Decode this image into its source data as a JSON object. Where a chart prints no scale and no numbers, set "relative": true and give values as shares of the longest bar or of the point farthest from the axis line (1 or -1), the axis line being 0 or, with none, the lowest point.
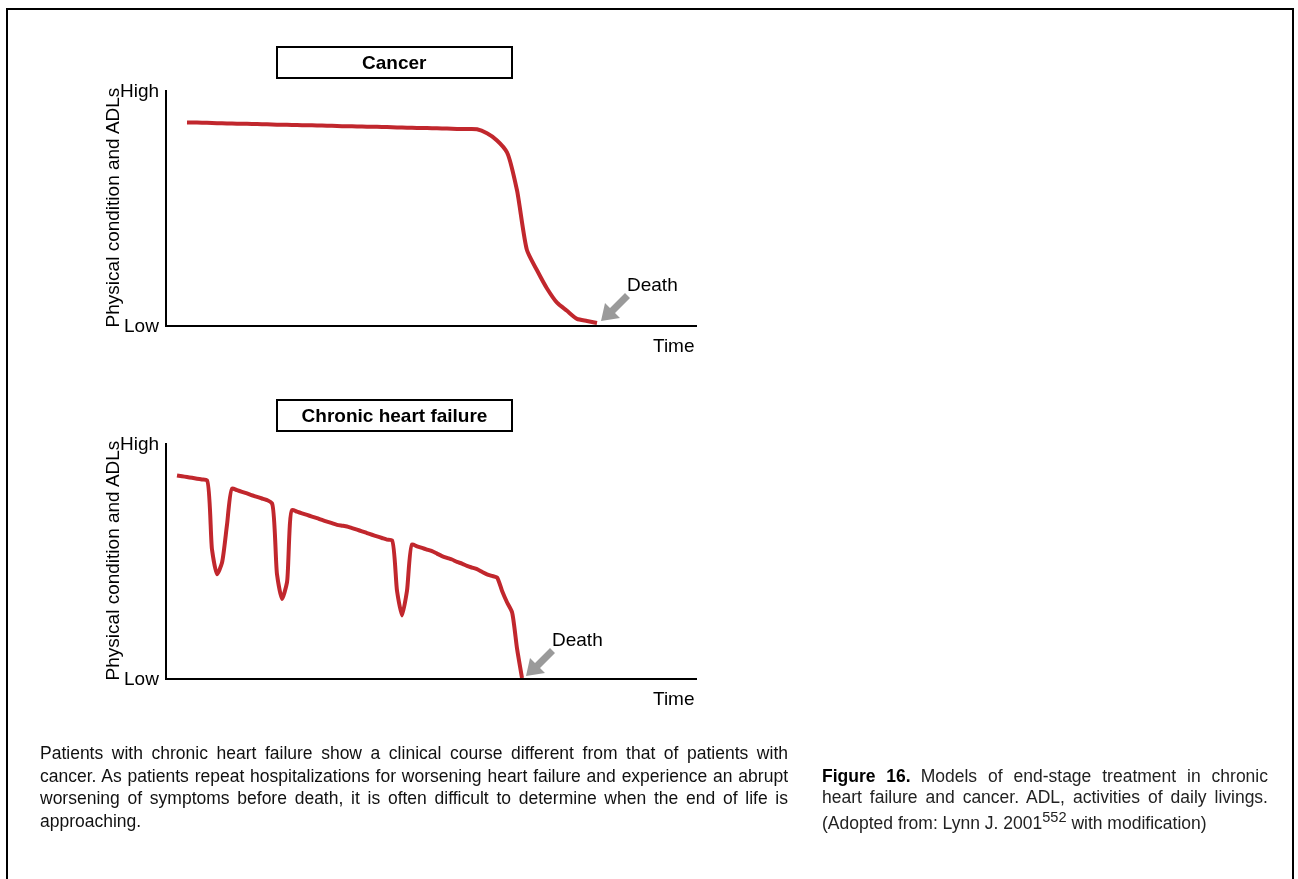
{
  "chart_data": [
    {
      "type": "line",
      "title": "Cancer",
      "ylabel": "Physical condition and ADLs",
      "xlabel": "Time",
      "relative": true,
      "legend": false,
      "marker": "none",
      "grid": false,
      "annotations": [
        "High",
        "Low",
        "Death"
      ],
      "categories": [
        null,
        null,
        null,
        null,
        null,
        null,
        null,
        null,
        null,
        null,
        null,
        null,
        null,
        null,
        null,
        null,
        null,
        null,
        null,
        null,
        null,
        null,
        null,
        null,
        null,
        null,
        null,
        null,
        null,
        null,
        null,
        null,
        null,
        null,
        null,
        null,
        null,
        null,
        null,
        null,
        null,
        null,
        null,
        null,
        null,
        null,
        null,
        null,
        null,
        null,
        null,
        null,
        null,
        null
      ],
      "series": [
        {
          "color": "#c1272d",
          "values": [
            null,
            null,
            1.0,
            0.999,
            0.998,
            0.996,
            0.995,
            0.994,
            0.993,
            0.992,
            0.991,
            0.989,
            0.988,
            0.987,
            0.986,
            0.985,
            0.984,
            0.982,
            0.981,
            0.98,
            0.979,
            0.978,
            0.977,
            0.975,
            0.974,
            0.973,
            0.972,
            0.971,
            0.97,
            0.968,
            0.967,
            0.966,
            0.946,
            0.911,
            0.852,
            0.665,
            0.369,
            0.27,
            0.18,
            0.11,
            0.07,
            0.03,
            0.02,
            0.01,
            null,
            null,
            null,
            null,
            null,
            null,
            null,
            null,
            null,
            null
          ]
        }
      ]
    },
    {
      "type": "line",
      "title": "Chronic heart failure",
      "ylabel": "Physical condition and ADLs",
      "xlabel": "Time",
      "relative": true,
      "legend": false,
      "marker": "none",
      "grid": false,
      "annotations": [
        "High",
        "Low",
        "Death"
      ],
      "categories": [
        null,
        null,
        null,
        null,
        null,
        null,
        null,
        null,
        null,
        null,
        null,
        null,
        null,
        null,
        null,
        null,
        null,
        null,
        null,
        null,
        null,
        null,
        null,
        null,
        null,
        null,
        null,
        null,
        null,
        null,
        null,
        null,
        null,
        null,
        null,
        null,
        null,
        null,
        null,
        null,
        null,
        null,
        null,
        null,
        null,
        null,
        null,
        null,
        null,
        null,
        null,
        null,
        null,
        null,
        null,
        null,
        null,
        null,
        null,
        null,
        null,
        null,
        null,
        null,
        null,
        null,
        null,
        null,
        null,
        null,
        null,
        null,
        null,
        null,
        null,
        null,
        null,
        null,
        null,
        null,
        null,
        null,
        null,
        null,
        null,
        null,
        null,
        null,
        null,
        null,
        null,
        null,
        null,
        null,
        null,
        null,
        null,
        null,
        null,
        null,
        null,
        null,
        null,
        null,
        null,
        null,
        null
      ],
      "series": [
        {
          "color": "#c1272d",
          "values": [
            null,
            null,
            1.0,
            0.996,
            0.992,
            0.988,
            0.984,
            0.98,
            0.976,
            0.634,
            0.512,
            0.569,
            0.756,
            0.935,
            0.927,
            0.919,
            0.911,
            0.902,
            0.894,
            0.886,
            0.878,
            0.862,
            0.512,
            0.39,
            0.472,
            0.829,
            0.821,
            0.813,
            0.805,
            0.797,
            0.789,
            0.78,
            0.772,
            0.764,
            0.756,
            0.752,
            0.748,
            0.74,
            0.732,
            0.724,
            0.715,
            0.707,
            0.699,
            0.691,
            0.683,
            0.679,
            0.431,
            0.309,
            0.431,
            0.659,
            0.65,
            0.642,
            0.634,
            0.626,
            0.614,
            0.602,
            0.593,
            0.585,
            0.573,
            0.565,
            0.553,
            0.545,
            0.537,
            0.524,
            0.512,
            0.504,
            0.496,
            0.431,
            0.374,
            0.325,
            0.146,
            0,
            null,
            null,
            null,
            null,
            null,
            null,
            null,
            null,
            null,
            null,
            null,
            null,
            null,
            null,
            null,
            null,
            null,
            null,
            null,
            null,
            null,
            null,
            null,
            null,
            null,
            null,
            null,
            null,
            null,
            null,
            null,
            null,
            null,
            null,
            null
          ]
        }
      ]
    },
    {
      "type": "other",
      "annotations": [
        "Patients with chronic heart failure show a clinical course different from that of patients with cancer. As patients repeat hospitalizations for worsening heart failure and experience an abrupt worsening of symptoms before death, it is often difficult to determine when the end of life is approaching.",
        "Figure 16.",
        "Models of end-stage treatment in chronic heart failure and cancer. ADL, activities of daily livings. (Adopted from: Lynn J. 2001$^{552}$ with modification)"
      ]
    }
  ]
}
